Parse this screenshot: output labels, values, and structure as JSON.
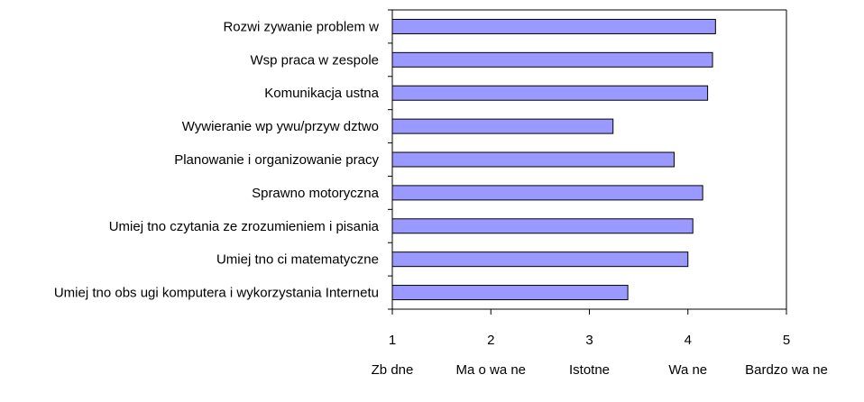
{
  "colors": {
    "bar_fill": "#9999ff",
    "bar_stroke": "#000000",
    "axis": "#000000",
    "background": "#ffffff"
  },
  "chart_data": {
    "type": "bar",
    "orientation": "horizontal",
    "categories": [
      "Rozwi zywanie problem w",
      "Wsp praca w zespole",
      "Komunikacja ustna",
      "Wywieranie wp ywu/przyw dztwo",
      "Planowanie i organizowanie pracy",
      "Sprawno motoryczna",
      "Umiej tno czytania ze zrozumieniem i pisania",
      "Umiej tno ci matematyczne",
      "Umiej tno obs ugi komputera i wykorzystania Internetu"
    ],
    "values": [
      4.28,
      4.25,
      4.2,
      3.24,
      3.86,
      4.15,
      4.05,
      4.0,
      3.39
    ],
    "xlim": [
      1,
      5
    ],
    "ticks": [
      1,
      2,
      3,
      4,
      5
    ],
    "tick_labels": [
      "1",
      "2",
      "3",
      "4",
      "5"
    ],
    "scale_labels": [
      "Zb dne",
      "Ma o wa ne",
      "Istotne",
      "Wa ne",
      "Bardzo wa ne"
    ],
    "grid": false,
    "legend": "none",
    "title": "",
    "xlabel": "",
    "ylabel": ""
  }
}
